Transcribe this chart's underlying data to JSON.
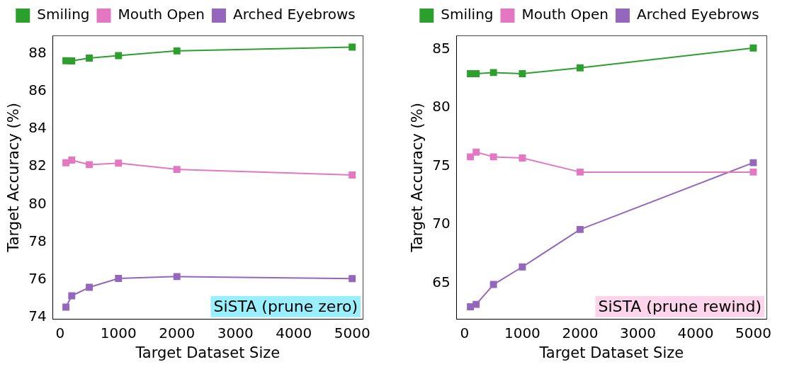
{
  "chart_data": [
    {
      "type": "line",
      "xlabel": "Target Dataset Size",
      "ylabel": "Target Accuracy (%)",
      "x": [
        100,
        200,
        500,
        1000,
        2000,
        5000
      ],
      "series": [
        {
          "name": "Smiling",
          "color": "#2ca02c",
          "values": [
            87.61,
            87.6,
            87.75,
            87.88,
            88.13,
            88.33
          ]
        },
        {
          "name": "Mouth Open",
          "color": "#e377c2",
          "values": [
            82.2,
            82.34,
            82.1,
            82.18,
            81.85,
            81.55
          ]
        },
        {
          "name": "Arched Eyebrows",
          "color": "#9467bd",
          "values": [
            74.55,
            75.15,
            75.6,
            76.07,
            76.17,
            76.06
          ]
        }
      ],
      "xlim": [
        -123,
        5180
      ],
      "xticks": [
        0,
        1000,
        2000,
        3000,
        4000,
        5000
      ],
      "ylim": [
        73.9,
        88.95
      ],
      "yticks": [
        74,
        76,
        78,
        80,
        82,
        84,
        86,
        88
      ],
      "marker": "square",
      "grid": false,
      "legend": "top",
      "annotations": [
        "SiSTA (prune zero)"
      ]
    },
    {
      "type": "line",
      "xlabel": "Target Dataset Size",
      "ylabel": "Target Accuracy (%)",
      "x": [
        100,
        200,
        500,
        1000,
        2000,
        5000
      ],
      "series": [
        {
          "name": "Smiling",
          "color": "#2ca02c",
          "values": [
            82.9,
            82.9,
            83.0,
            82.9,
            83.4,
            85.1
          ]
        },
        {
          "name": "Mouth Open",
          "color": "#e377c2",
          "values": [
            75.8,
            76.2,
            75.8,
            75.7,
            74.5,
            74.5
          ]
        },
        {
          "name": "Arched Eyebrows",
          "color": "#9467bd",
          "values": [
            63.0,
            63.2,
            64.9,
            66.4,
            69.6,
            75.3
          ]
        }
      ],
      "xlim": [
        -138,
        5228
      ],
      "xticks": [
        0,
        1000,
        2000,
        3000,
        4000,
        5000
      ],
      "ylim": [
        61.92,
        86.17
      ],
      "yticks": [
        65,
        70,
        75,
        80,
        85
      ],
      "marker": "square",
      "grid": false,
      "legend": "top",
      "annotations": [
        "SiSTA (prune rewind)"
      ]
    }
  ]
}
